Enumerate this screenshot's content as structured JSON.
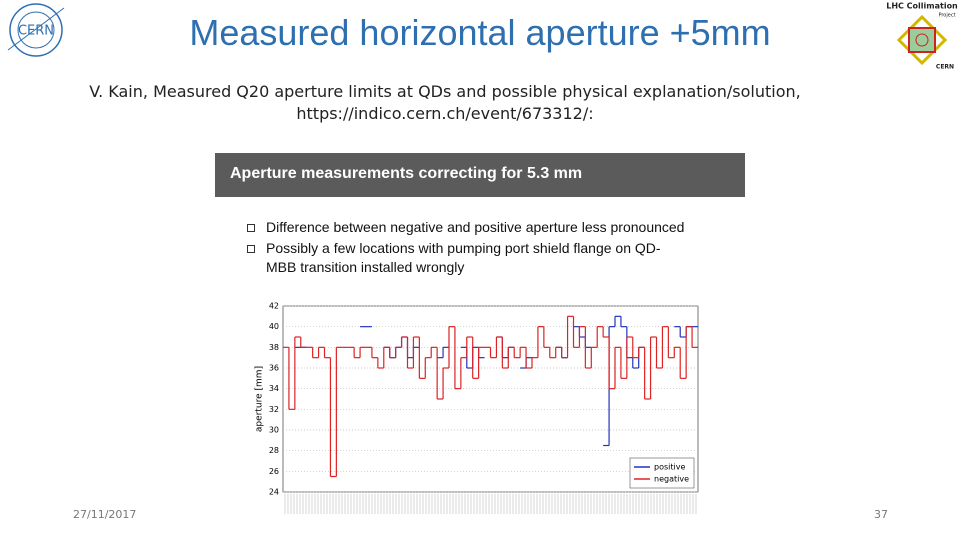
{
  "header": {
    "title": "Measured horizontal aperture +5mm"
  },
  "citation": [
    "V. Kain, Measured Q20 aperture limits at QDs and possible physical explanation/solution,",
    "https://indico.cern.ch/event/673312/:"
  ],
  "logos": {
    "left": "CERN",
    "right": [
      "LHC Collimation",
      "Project",
      "CERN"
    ]
  },
  "panel": {
    "heading": "Aperture measurements correcting for 5.3 mm",
    "bullets": [
      [
        "Difference between negative and positive aperture less pronounced"
      ],
      [
        "Possibly a few locations with pumping port shield flange on QD-",
        "MBB transition installed wrongly"
      ]
    ]
  },
  "chart_data": {
    "type": "line",
    "y_label": "aperture [mm]",
    "ylim": [
      24,
      42
    ],
    "yticks": [
      24,
      26,
      28,
      30,
      32,
      34,
      36,
      38,
      40,
      42
    ],
    "grid": true,
    "legend": "lower right",
    "series": [
      {
        "name": "positive",
        "color": "#2233bb",
        "values": [
          null,
          null,
          38,
          38,
          null,
          null,
          null,
          null,
          null,
          null,
          null,
          null,
          null,
          40,
          40,
          null,
          null,
          38,
          37,
          38,
          39,
          37,
          38,
          null,
          null,
          null,
          37,
          38,
          null,
          null,
          38,
          36,
          38,
          37,
          null,
          null,
          39,
          37,
          38,
          null,
          36,
          37,
          null,
          null,
          null,
          null,
          38,
          37,
          null,
          40,
          39,
          38,
          null,
          null,
          28.5,
          40,
          41,
          40,
          37,
          36,
          38,
          null,
          null,
          null,
          null,
          null,
          40,
          39,
          40,
          40
        ]
      },
      {
        "name": "negative",
        "color": "#dd2222",
        "values": [
          38,
          32,
          39,
          38,
          38,
          37,
          38,
          37,
          25.5,
          38,
          38,
          38,
          37,
          38,
          38,
          37,
          36,
          38,
          37,
          38,
          39,
          36,
          39,
          35,
          37,
          38,
          33,
          36,
          40,
          34,
          37,
          39,
          35,
          38,
          38,
          37,
          39,
          36,
          38,
          37,
          38,
          36,
          37,
          40,
          38,
          37,
          38,
          37,
          41,
          38,
          40,
          36,
          38,
          40,
          39,
          34,
          38,
          35,
          39,
          37,
          38,
          33,
          39,
          36,
          40,
          37,
          38,
          35,
          40,
          38
        ]
      }
    ]
  },
  "footer": {
    "date": "27/11/2017",
    "page": "37"
  }
}
